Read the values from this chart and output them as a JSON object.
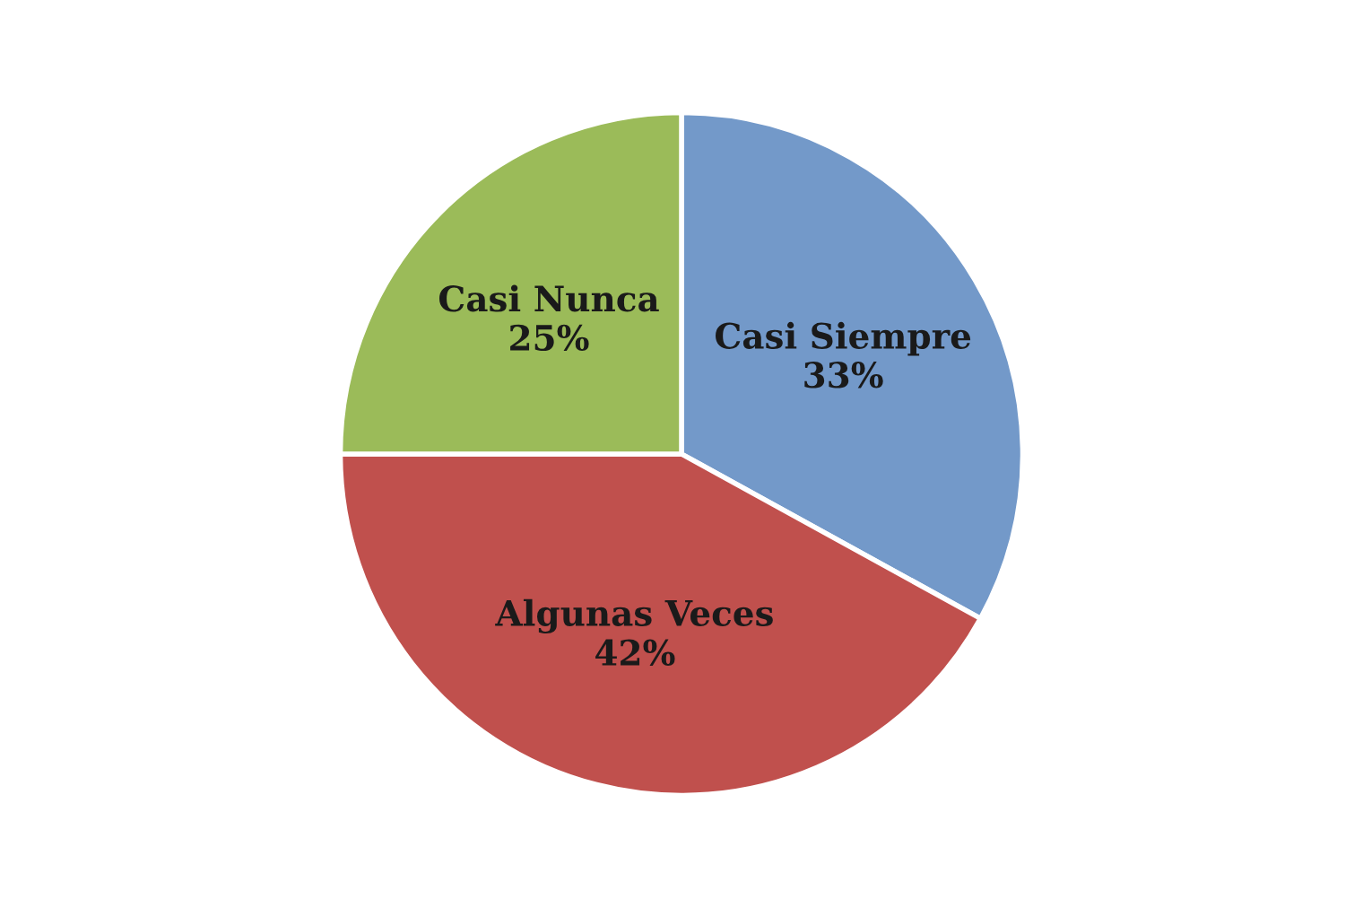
{
  "chart_data": {
    "type": "pie",
    "categories": [
      "Casi Siempre",
      "Algunas Veces",
      "Casi Nunca"
    ],
    "values": [
      33,
      42,
      25
    ],
    "value_labels": [
      "33%",
      "42%",
      "25%"
    ],
    "colors": [
      "#7399c9",
      "#c0504d",
      "#9bbb59"
    ],
    "legend": false
  }
}
